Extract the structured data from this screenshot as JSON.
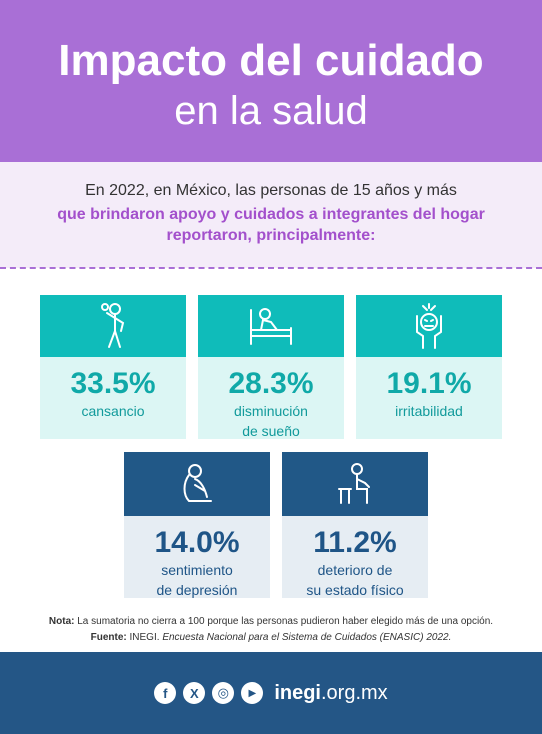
{
  "header": {
    "title_line1": "Impacto del cuidado",
    "title_line2": "en la salud"
  },
  "intro": {
    "line1": "En 2022, en México, las personas de 15 años y más",
    "line2": "que brindaron apoyo y cuidados a integrantes del hogar reportaron, principalmente:"
  },
  "cards": [
    {
      "icon": "tired-person-icon",
      "pct": "33.5%",
      "label_lines": [
        "cansancio"
      ]
    },
    {
      "icon": "person-in-bed-icon",
      "pct": "28.3%",
      "label_lines": [
        "disminución",
        "de sueño"
      ]
    },
    {
      "icon": "irritated-person-icon",
      "pct": "19.1%",
      "label_lines": [
        "irritabilidad"
      ]
    },
    {
      "icon": "depressed-person-icon",
      "pct": "14.0%",
      "label_lines": [
        "sentimiento",
        "de depresión"
      ]
    },
    {
      "icon": "seated-person-icon",
      "pct": "11.2%",
      "label_lines": [
        "deterioro de",
        "su estado físico"
      ]
    }
  ],
  "notes": {
    "nota_label": "Nota:",
    "nota_text": "La sumatoria no cierra a 100 porque las personas pudieron haber elegido más de una opción.",
    "fuente_label": "Fuente:",
    "fuente_org": "INEGI.",
    "fuente_title": "Encuesta Nacional para el Sistema de Cuidados (ENASIC) 2022."
  },
  "footer": {
    "social": [
      {
        "icon": "facebook-icon",
        "glyph": "f"
      },
      {
        "icon": "x-icon",
        "glyph": "X"
      },
      {
        "icon": "instagram-icon",
        "glyph": "◎"
      },
      {
        "icon": "youtube-icon",
        "glyph": "▶"
      }
    ],
    "site_bold": "inegi",
    "site_rest": ".org.mx"
  },
  "colors": {
    "purple": "#a96fd6",
    "teal": "#0fbcba",
    "navy": "#245686"
  }
}
